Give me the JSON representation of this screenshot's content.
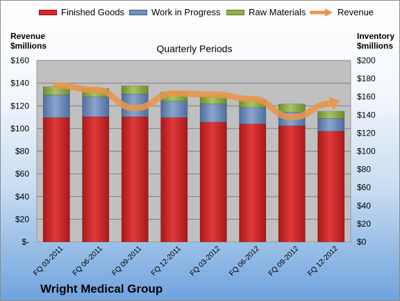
{
  "chart_data": {
    "type": "bar",
    "subtype": "stacked bar with line overlay",
    "title": "Quarterly Periods",
    "company": "Wright Medical Group",
    "left_axis_title": [
      "Revenue",
      "$millions"
    ],
    "right_axis_title": [
      "Inventory",
      "$millions"
    ],
    "categories": [
      "FQ 03-2011",
      "FQ 06-2011",
      "FQ 09-2011",
      "FQ 12-2011",
      "FQ 03-2012",
      "FQ 06-2012",
      "FQ 09-2012",
      "FQ 12-2012"
    ],
    "series": [
      {
        "name": "Finished Goods",
        "axis": "right",
        "color": "#d42a2a",
        "values": [
          137,
          138,
          138,
          137,
          132,
          130,
          128,
          122
        ]
      },
      {
        "name": "Work in Progress",
        "axis": "right",
        "color": "#6f8fbf",
        "values": [
          25,
          22,
          25,
          18,
          20,
          18,
          15,
          14
        ]
      },
      {
        "name": "Raw Materials",
        "axis": "right",
        "color": "#90b04a",
        "values": [
          9,
          9,
          9,
          10,
          9,
          9,
          9,
          8
        ]
      },
      {
        "name": "Revenue",
        "axis": "left",
        "type": "line",
        "color": "#e8954a",
        "values": [
          138,
          134,
          118,
          131,
          130,
          126,
          110,
          122
        ]
      }
    ],
    "left_axis": {
      "min": 0,
      "max": 160,
      "step": 20,
      "tick_labels": [
        "$-",
        "$20",
        "$40",
        "$60",
        "$80",
        "$100",
        "$120",
        "$140",
        "$160"
      ]
    },
    "right_axis": {
      "min": 0,
      "max": 200,
      "step": 20,
      "tick_labels": [
        "$0",
        "$20",
        "$40",
        "$60",
        "$80",
        "$100",
        "$120",
        "$140",
        "$160",
        "$180",
        "$200"
      ]
    },
    "grid": true,
    "legend_position": "top",
    "plot_background": "#c0c0c0"
  }
}
